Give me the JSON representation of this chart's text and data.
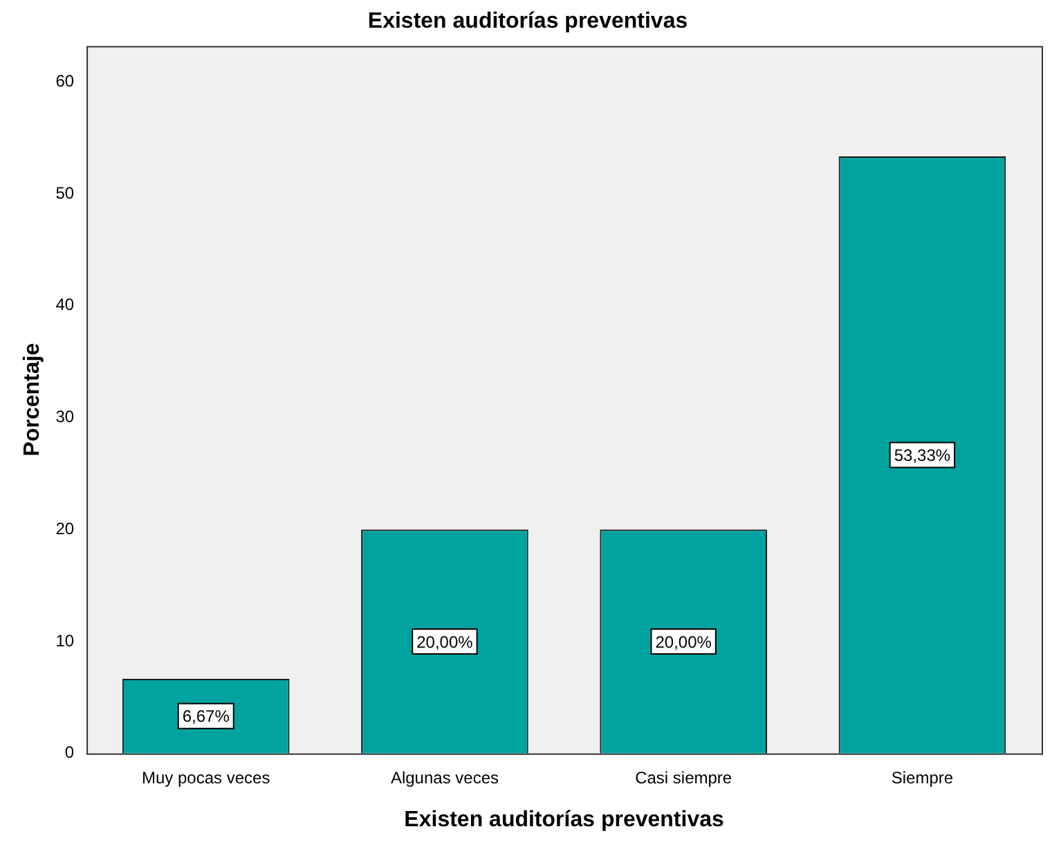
{
  "chart_data": {
    "type": "bar",
    "title": "Existen auditorías preventivas",
    "xlabel": "Existen auditorías preventivas",
    "ylabel": "Porcentaje",
    "categories": [
      "Muy pocas veces",
      "Algunas veces",
      "Casi siempre",
      "Siempre"
    ],
    "values": [
      6.67,
      20,
      20,
      53.33
    ],
    "color": "#00a3a0",
    "value_labels": [
      "6,67%",
      "20,00%",
      "20,00%",
      "53,33%"
    ],
    "ylim": [
      0,
      63.2
    ],
    "yticks": [
      0,
      10,
      20,
      30,
      40,
      50,
      60
    ],
    "grid": false,
    "legend": false
  }
}
